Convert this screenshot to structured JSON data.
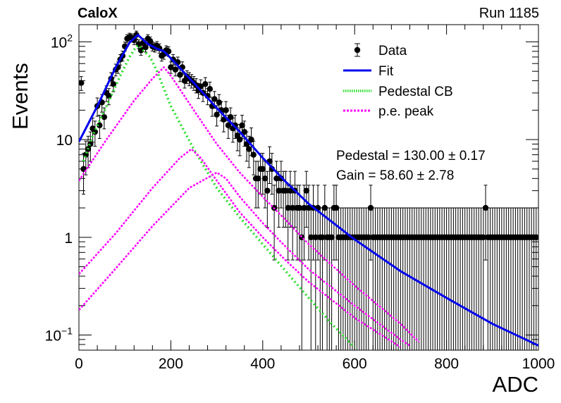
{
  "header": {
    "experiment": "CaloX",
    "run": "Run 1185"
  },
  "stats": {
    "pedestal": "Pedestal = 130.00 ± 0.17",
    "gain": "Gain = 58.60 ± 2.78"
  },
  "chart_data": {
    "type": "scatter",
    "title": "",
    "xlabel": "ADC",
    "ylabel": "Events",
    "xlim": [
      0,
      1000
    ],
    "ylim": [
      0.07,
      150
    ],
    "yscale": "log",
    "x_ticks": [
      "0",
      "200",
      "400",
      "600",
      "800",
      "1000"
    ],
    "y_ticks": [
      {
        "value": 0.1,
        "base": "10",
        "exp": "−1"
      },
      {
        "value": 1,
        "base": "1",
        "exp": ""
      },
      {
        "value": 10,
        "base": "10",
        "exp": ""
      },
      {
        "value": 100,
        "base": "10",
        "exp": "2"
      }
    ],
    "legend": {
      "position": "top-right",
      "entries": [
        {
          "label": "Data",
          "style": "marker",
          "color": "#000000"
        },
        {
          "label": "Fit",
          "style": "solid",
          "color": "#0000ee"
        },
        {
          "label": "Pedestal CB",
          "style": "dotted",
          "color": "#22dd22"
        },
        {
          "label": "p.e. peak",
          "style": "dashed",
          "color": "#ff00ff"
        }
      ]
    },
    "data_points": [
      [
        5,
        38
      ],
      [
        10,
        5
      ],
      [
        15,
        7
      ],
      [
        20,
        8
      ],
      [
        25,
        9
      ],
      [
        30,
        13
      ],
      [
        35,
        12
      ],
      [
        40,
        22
      ],
      [
        45,
        14
      ],
      [
        50,
        24
      ],
      [
        55,
        17
      ],
      [
        60,
        30
      ],
      [
        65,
        28
      ],
      [
        70,
        42
      ],
      [
        75,
        37
      ],
      [
        80,
        52
      ],
      [
        85,
        55
      ],
      [
        90,
        66
      ],
      [
        95,
        72
      ],
      [
        100,
        90
      ],
      [
        105,
        108
      ],
      [
        110,
        112
      ],
      [
        115,
        110
      ],
      [
        120,
        104
      ],
      [
        125,
        118
      ],
      [
        130,
        95
      ],
      [
        135,
        82
      ],
      [
        140,
        98
      ],
      [
        145,
        88
      ],
      [
        150,
        108
      ],
      [
        155,
        102
      ],
      [
        160,
        90
      ],
      [
        165,
        88
      ],
      [
        170,
        91
      ],
      [
        175,
        86
      ],
      [
        180,
        72
      ],
      [
        185,
        75
      ],
      [
        190,
        82
      ],
      [
        195,
        80
      ],
      [
        200,
        55
      ],
      [
        205,
        66
      ],
      [
        210,
        52
      ],
      [
        215,
        62
      ],
      [
        220,
        46
      ],
      [
        225,
        55
      ],
      [
        230,
        40
      ],
      [
        235,
        44
      ],
      [
        240,
        42
      ],
      [
        245,
        40
      ],
      [
        250,
        38
      ],
      [
        255,
        36
      ],
      [
        260,
        32
      ],
      [
        265,
        35
      ],
      [
        270,
        30
      ],
      [
        275,
        37
      ],
      [
        280,
        28
      ],
      [
        285,
        33
      ],
      [
        290,
        22
      ],
      [
        295,
        26
      ],
      [
        300,
        18
      ],
      [
        305,
        24
      ],
      [
        310,
        20
      ],
      [
        315,
        16
      ],
      [
        320,
        20
      ],
      [
        325,
        14
      ],
      [
        330,
        17
      ],
      [
        335,
        13
      ],
      [
        340,
        14
      ],
      [
        345,
        11
      ],
      [
        350,
        10
      ],
      [
        355,
        14
      ],
      [
        360,
        12
      ],
      [
        365,
        9
      ],
      [
        370,
        8
      ],
      [
        375,
        10
      ],
      [
        380,
        7
      ],
      [
        385,
        4
      ],
      [
        390,
        4
      ],
      [
        395,
        5
      ],
      [
        400,
        5
      ],
      [
        405,
        4
      ],
      [
        410,
        3
      ],
      [
        415,
        6
      ],
      [
        420,
        5
      ],
      [
        425,
        2
      ],
      [
        430,
        4
      ],
      [
        435,
        3
      ],
      [
        440,
        4
      ],
      [
        445,
        3
      ],
      [
        450,
        3
      ],
      [
        455,
        2
      ],
      [
        460,
        3
      ],
      [
        465,
        2
      ],
      [
        470,
        3
      ],
      [
        475,
        2
      ],
      [
        480,
        2
      ],
      [
        485,
        1
      ],
      [
        490,
        2
      ],
      [
        495,
        3
      ],
      [
        500,
        2
      ],
      [
        505,
        1
      ],
      [
        510,
        2
      ],
      [
        515,
        1
      ],
      [
        520,
        2
      ],
      [
        525,
        1
      ],
      [
        530,
        1
      ],
      [
        535,
        2
      ],
      [
        540,
        1
      ],
      [
        545,
        1
      ],
      [
        550,
        1
      ],
      [
        555,
        2
      ],
      [
        560,
        2
      ],
      [
        565,
        1
      ],
      [
        570,
        1
      ],
      [
        575,
        1
      ],
      [
        580,
        1
      ],
      [
        585,
        1
      ],
      [
        590,
        1
      ],
      [
        595,
        1
      ],
      [
        600,
        1
      ],
      [
        605,
        1
      ],
      [
        610,
        1
      ],
      [
        615,
        1
      ],
      [
        620,
        1
      ],
      [
        625,
        1
      ],
      [
        630,
        1
      ],
      [
        635,
        2
      ],
      [
        640,
        1
      ],
      [
        645,
        1
      ],
      [
        650,
        1
      ],
      [
        655,
        1
      ],
      [
        660,
        1
      ],
      [
        665,
        1
      ],
      [
        670,
        1
      ],
      [
        675,
        1
      ],
      [
        680,
        1
      ],
      [
        685,
        1
      ],
      [
        690,
        1
      ],
      [
        695,
        1
      ],
      [
        700,
        1
      ],
      [
        705,
        1
      ],
      [
        710,
        1
      ],
      [
        715,
        1
      ],
      [
        720,
        1
      ],
      [
        725,
        1
      ],
      [
        730,
        1
      ],
      [
        735,
        1
      ],
      [
        740,
        1
      ],
      [
        745,
        1
      ],
      [
        750,
        1
      ],
      [
        755,
        1
      ],
      [
        760,
        1
      ],
      [
        765,
        1
      ],
      [
        770,
        1
      ],
      [
        775,
        1
      ],
      [
        780,
        1
      ],
      [
        785,
        1
      ],
      [
        790,
        1
      ],
      [
        795,
        1
      ],
      [
        800,
        1
      ],
      [
        805,
        1
      ],
      [
        810,
        1
      ],
      [
        815,
        1
      ],
      [
        820,
        1
      ],
      [
        825,
        1
      ],
      [
        830,
        1
      ],
      [
        835,
        1
      ],
      [
        840,
        1
      ],
      [
        845,
        1
      ],
      [
        850,
        1
      ],
      [
        855,
        1
      ],
      [
        860,
        1
      ],
      [
        865,
        1
      ],
      [
        870,
        1
      ],
      [
        875,
        1
      ],
      [
        880,
        1
      ],
      [
        885,
        2
      ],
      [
        890,
        1
      ],
      [
        895,
        1
      ],
      [
        900,
        1
      ],
      [
        905,
        1
      ],
      [
        910,
        1
      ],
      [
        915,
        1
      ],
      [
        920,
        1
      ],
      [
        925,
        1
      ],
      [
        930,
        1
      ],
      [
        935,
        1
      ],
      [
        940,
        1
      ],
      [
        945,
        1
      ],
      [
        950,
        1
      ],
      [
        955,
        1
      ],
      [
        960,
        1
      ],
      [
        965,
        1
      ],
      [
        970,
        1
      ],
      [
        975,
        1
      ],
      [
        980,
        1
      ],
      [
        985,
        1
      ],
      [
        990,
        1
      ],
      [
        995,
        1
      ]
    ],
    "fit_curve": [
      [
        0,
        9.5
      ],
      [
        40,
        22
      ],
      [
        80,
        55
      ],
      [
        110,
        98
      ],
      [
        128,
        118
      ],
      [
        150,
        95
      ],
      [
        170,
        85
      ],
      [
        185,
        80
      ],
      [
        200,
        68
      ],
      [
        250,
        38
      ],
      [
        300,
        21
      ],
      [
        350,
        12
      ],
      [
        400,
        6.5
      ],
      [
        450,
        3.7
      ],
      [
        500,
        2.2
      ],
      [
        600,
        0.95
      ],
      [
        700,
        0.45
      ],
      [
        800,
        0.24
      ],
      [
        900,
        0.13
      ],
      [
        1000,
        0.078
      ]
    ],
    "pedestal_curve": [
      [
        10,
        6
      ],
      [
        30,
        11
      ],
      [
        60,
        22
      ],
      [
        90,
        45
      ],
      [
        110,
        70
      ],
      [
        125,
        90
      ],
      [
        130,
        92
      ],
      [
        140,
        82
      ],
      [
        155,
        70
      ],
      [
        170,
        50
      ],
      [
        200,
        22
      ],
      [
        250,
        8
      ],
      [
        300,
        3.2
      ],
      [
        350,
        1.6
      ],
      [
        400,
        0.85
      ],
      [
        450,
        0.45
      ],
      [
        500,
        0.24
      ],
      [
        550,
        0.13
      ],
      [
        600,
        0.075
      ]
    ],
    "pe_peak_curves": [
      [
        [
          0,
          3.8
        ],
        [
          60,
          10
        ],
        [
          120,
          25
        ],
        [
          160,
          42
        ],
        [
          185,
          55
        ],
        [
          200,
          45
        ],
        [
          250,
          20
        ],
        [
          300,
          9
        ],
        [
          350,
          4.6
        ],
        [
          400,
          2.6
        ],
        [
          450,
          1.5
        ],
        [
          500,
          0.85
        ],
        [
          600,
          0.32
        ],
        [
          700,
          0.13
        ],
        [
          740,
          0.085
        ]
      ],
      [
        [
          0,
          0.42
        ],
        [
          80,
          1.1
        ],
        [
          160,
          3.2
        ],
        [
          220,
          6.5
        ],
        [
          245,
          8
        ],
        [
          265,
          6.5
        ],
        [
          300,
          3.8
        ],
        [
          350,
          1.8
        ],
        [
          400,
          1
        ],
        [
          450,
          0.58
        ],
        [
          500,
          0.35
        ],
        [
          600,
          0.15
        ],
        [
          700,
          0.075
        ]
      ],
      [
        [
          0,
          0.18
        ],
        [
          80,
          0.48
        ],
        [
          160,
          1.3
        ],
        [
          240,
          3.2
        ],
        [
          300,
          4.6
        ],
        [
          320,
          4
        ],
        [
          350,
          2.6
        ],
        [
          400,
          1.4
        ],
        [
          450,
          0.8
        ],
        [
          500,
          0.47
        ],
        [
          600,
          0.2
        ],
        [
          700,
          0.09
        ],
        [
          720,
          0.078
        ]
      ]
    ]
  }
}
